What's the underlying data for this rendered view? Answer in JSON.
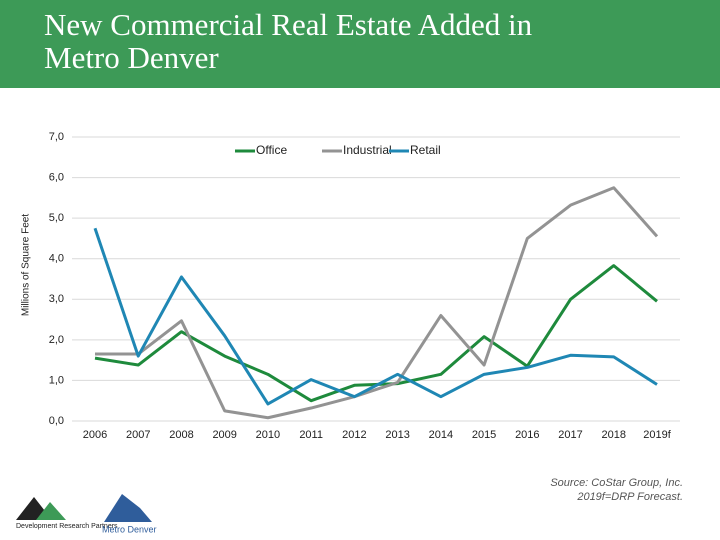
{
  "chart_data": {
    "type": "line",
    "title": "New Commercial Real Estate Added in Metro Denver",
    "y_label": "Millions of Square Feet",
    "categories": [
      "2006",
      "2007",
      "2008",
      "2009",
      "2010",
      "2011",
      "2012",
      "2013",
      "2014",
      "2015",
      "2016",
      "2017",
      "2018",
      "2019f"
    ],
    "series": [
      {
        "name": "Office",
        "color": "#1e8a3c",
        "values": [
          1.55,
          1.38,
          2.2,
          1.6,
          1.15,
          0.5,
          0.88,
          0.92,
          1.15,
          2.08,
          1.35,
          3.0,
          3.83,
          2.95
        ]
      },
      {
        "name": "Industrial",
        "color": "#939393",
        "values": [
          1.65,
          1.65,
          2.47,
          0.25,
          0.08,
          0.32,
          0.6,
          0.95,
          2.6,
          1.38,
          4.5,
          5.32,
          5.75,
          4.55
        ]
      },
      {
        "name": "Retail",
        "color": "#1f87b4",
        "values": [
          4.75,
          1.6,
          3.55,
          2.1,
          0.42,
          1.02,
          0.6,
          1.15,
          0.6,
          1.15,
          1.32,
          1.62,
          1.58,
          0.9
        ]
      }
    ],
    "ylim": [
      0,
      7
    ],
    "yticks": [
      {
        "value": 0,
        "label": "0,0"
      },
      {
        "value": 1,
        "label": "1,0"
      },
      {
        "value": 2,
        "label": "2,0"
      },
      {
        "value": 3,
        "label": "3,0"
      },
      {
        "value": 4,
        "label": "4,0"
      },
      {
        "value": 5,
        "label": "5,0"
      },
      {
        "value": 6,
        "label": "6,0"
      },
      {
        "value": 7,
        "label": "7,0"
      }
    ],
    "grid": true,
    "legend": "top",
    "source": [
      "Source: CoStar Group, Inc.",
      "2019f=DRP Forecast."
    ],
    "logos": [
      "Development Research Partners",
      "Metro Denver"
    ]
  }
}
